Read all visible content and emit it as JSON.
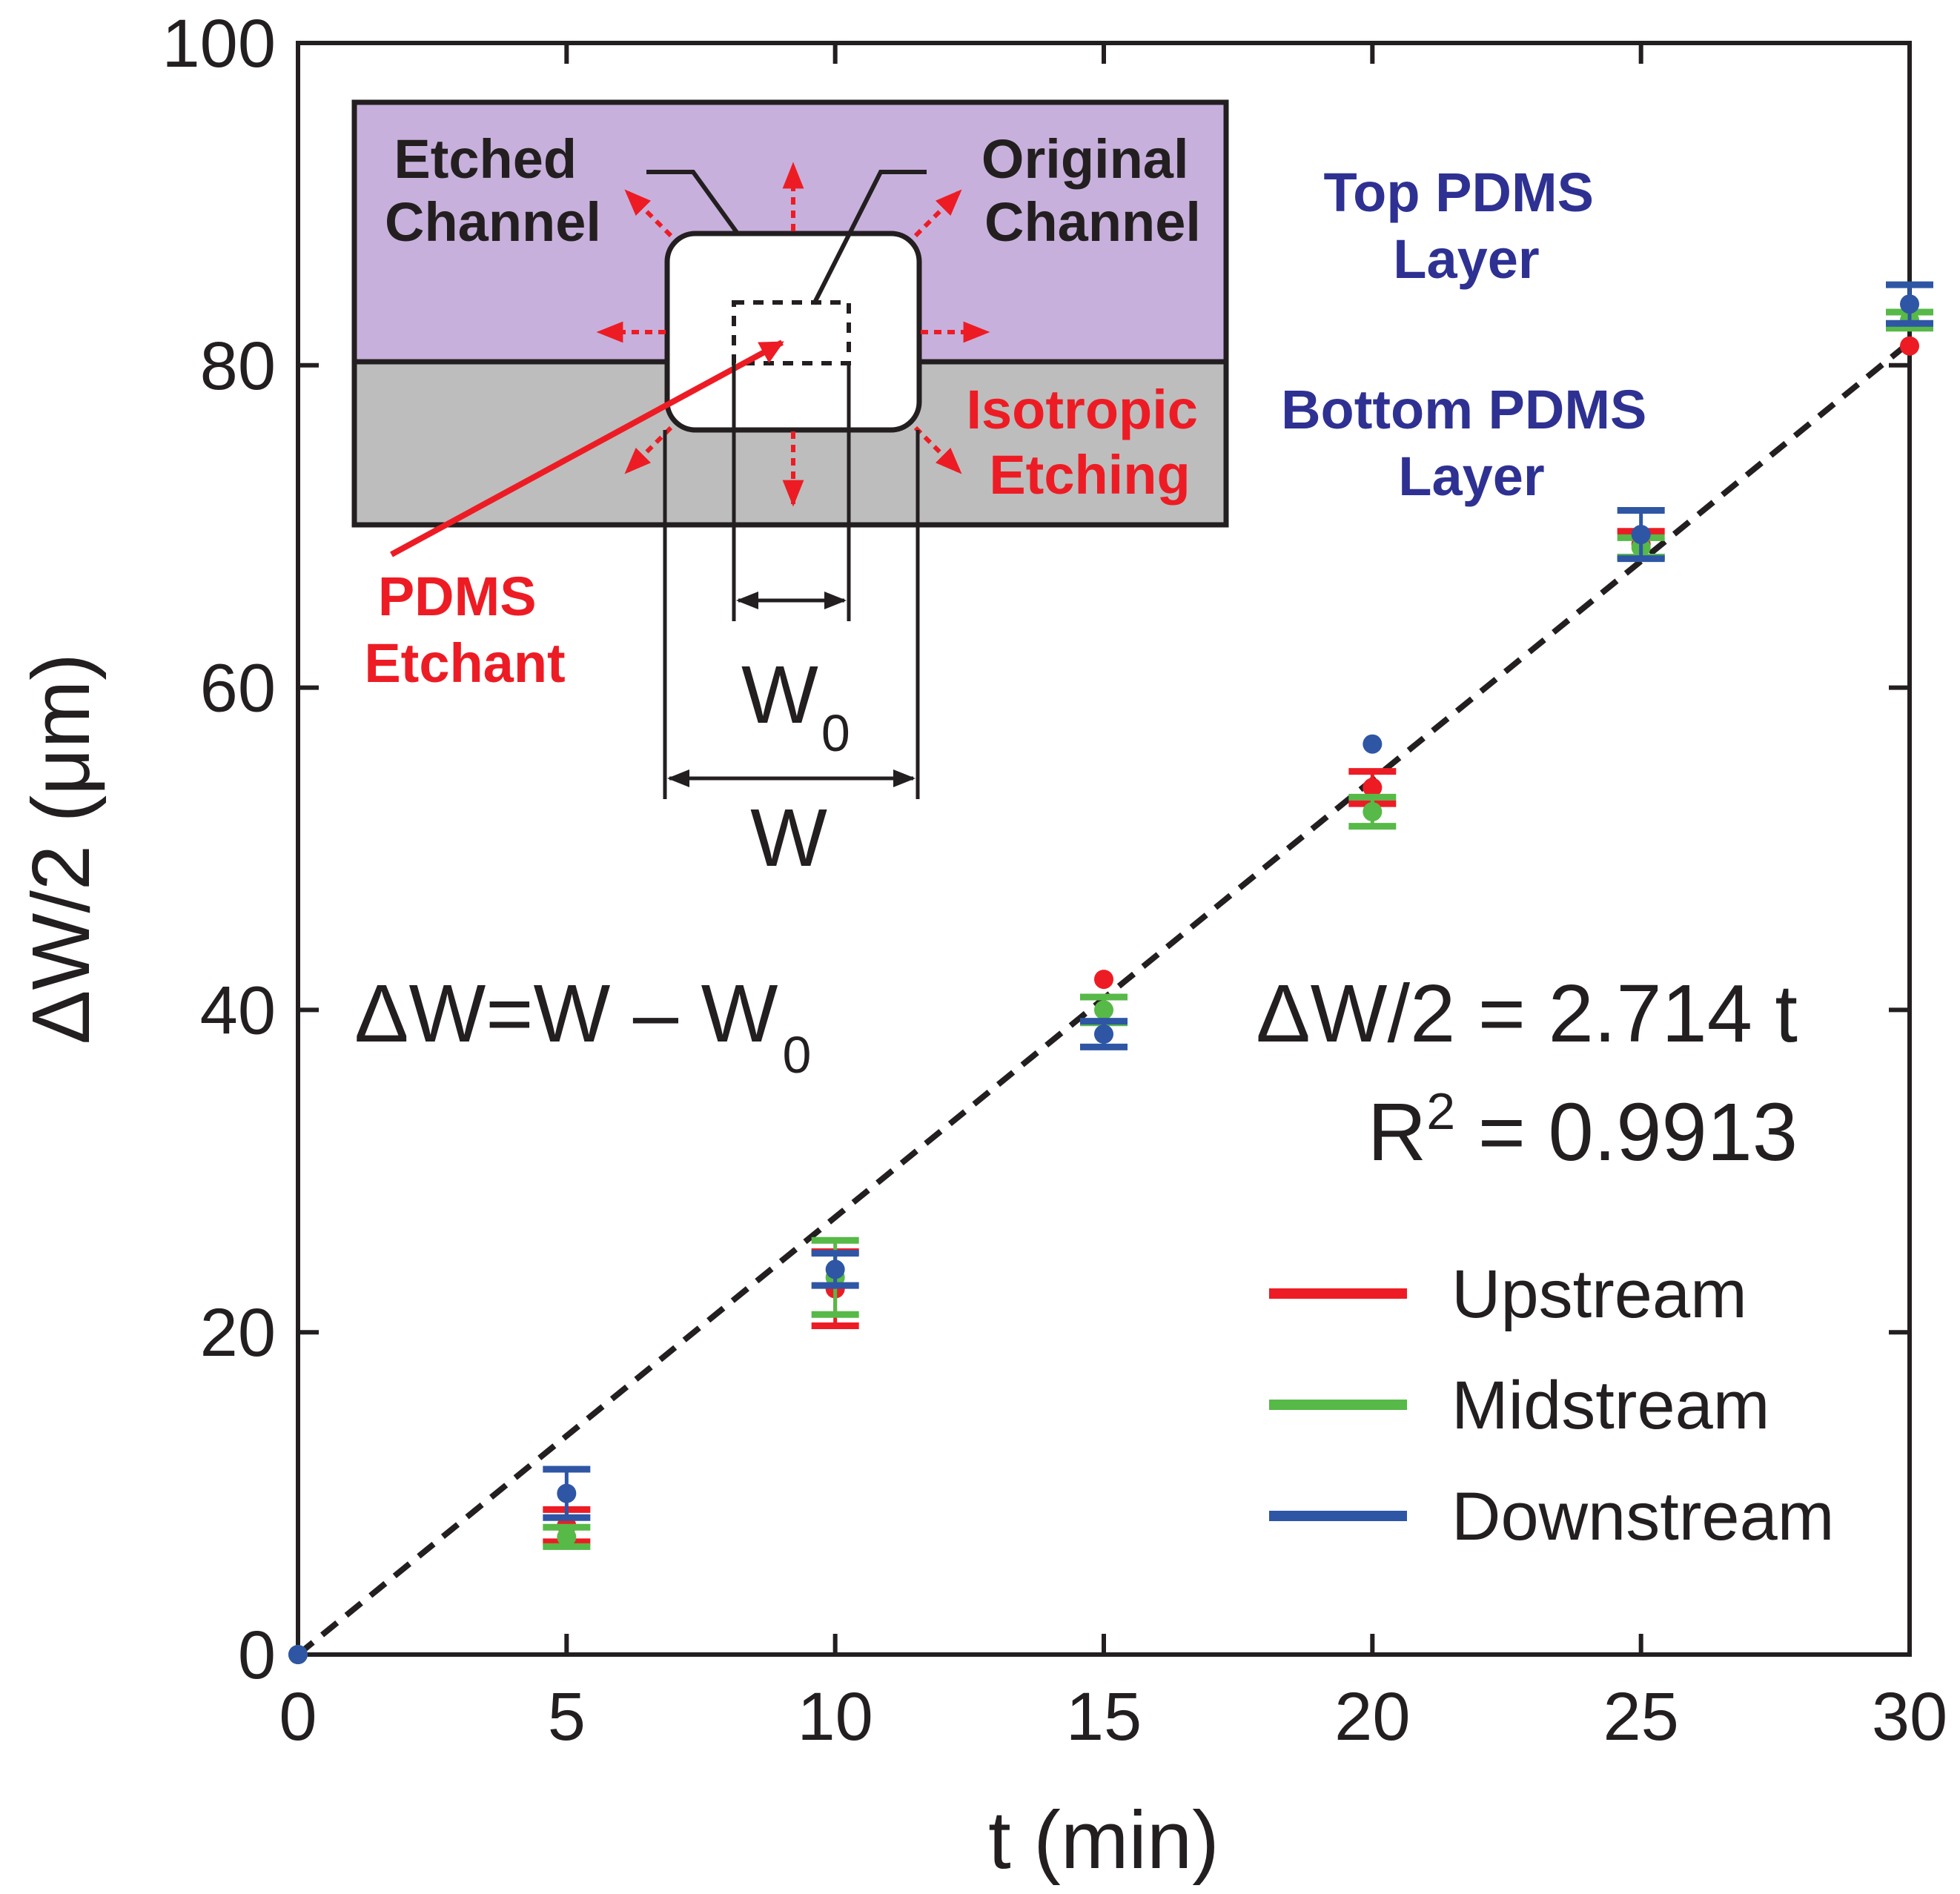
{
  "chart_data": {
    "type": "scatter",
    "xlabel": "t (min)",
    "ylabel": "ΔW/2 (μm)",
    "xlim": [
      0,
      30
    ],
    "ylim": [
      0,
      100
    ],
    "xticks": [
      0,
      5,
      10,
      15,
      20,
      25,
      30
    ],
    "yticks": [
      0,
      20,
      40,
      60,
      80,
      100
    ],
    "grid": false,
    "legend_position": "bottom-right",
    "series": [
      {
        "name": "Upstream",
        "color": "#ed1c24",
        "points": [
          {
            "x": 0,
            "y": 0,
            "err": 0
          },
          {
            "x": 5,
            "y": 8.0,
            "err": 1.0
          },
          {
            "x": 10,
            "y": 22.7,
            "err": 2.3
          },
          {
            "x": 15,
            "y": 41.9,
            "err": 0
          },
          {
            "x": 20,
            "y": 53.8,
            "err": 1.0
          },
          {
            "x": 25,
            "y": 68.9,
            "err": 0.8
          },
          {
            "x": 30,
            "y": 81.2,
            "err": 0
          }
        ]
      },
      {
        "name": "Midstream",
        "color": "#57b947",
        "points": [
          {
            "x": 0,
            "y": 0,
            "err": 0
          },
          {
            "x": 5,
            "y": 7.3,
            "err": 0.6
          },
          {
            "x": 10,
            "y": 23.4,
            "err": 2.3
          },
          {
            "x": 15,
            "y": 40.0,
            "err": 0.8
          },
          {
            "x": 20,
            "y": 52.3,
            "err": 0.9
          },
          {
            "x": 25,
            "y": 68.7,
            "err": 0.6
          },
          {
            "x": 30,
            "y": 82.8,
            "err": 0.5
          }
        ]
      },
      {
        "name": "Downstream",
        "color": "#2e56a5",
        "points": [
          {
            "x": 0,
            "y": 0,
            "err": 0
          },
          {
            "x": 5,
            "y": 10.0,
            "err": 1.5
          },
          {
            "x": 10,
            "y": 23.9,
            "err": 1.0
          },
          {
            "x": 15,
            "y": 38.5,
            "err": 0.8
          },
          {
            "x": 20,
            "y": 56.5,
            "err": 0
          },
          {
            "x": 25,
            "y": 69.5,
            "err": 1.5
          },
          {
            "x": 30,
            "y": 83.8,
            "err": 1.2
          }
        ]
      }
    ],
    "fit": {
      "slope": 2.714,
      "x_range": [
        0,
        30
      ],
      "style": "dashed",
      "color": "#231f20"
    },
    "annotations": {
      "delta_def_main": "ΔW=W – W",
      "delta_def_sub": "0",
      "fit_equation": "ΔW/2 = 2.714 t",
      "r2_prefix": "R",
      "r2_sup": "2",
      "r2_suffix": " = 0.9913"
    },
    "inset": {
      "etched_line1": "Etched",
      "etched_line2": "Channel",
      "original_line1": "Original",
      "original_line2": "Channel",
      "isotropic_line1": "Isotropic",
      "isotropic_line2": "Etching",
      "etchant_line1": "PDMS",
      "etchant_line2": "Etchant",
      "top_layer_line1": "Top PDMS",
      "top_layer_line2": "Layer",
      "bottom_layer_line1": "Bottom PDMS",
      "bottom_layer_line2": "Layer",
      "w0_main": "W",
      "w0_sub": "0",
      "w_label": "W",
      "colors": {
        "top_layer": "#c8b0dc",
        "bottom_layer": "#bdbdbd",
        "red_text": "#ed1c24",
        "blue_text": "#2e3192"
      }
    }
  }
}
